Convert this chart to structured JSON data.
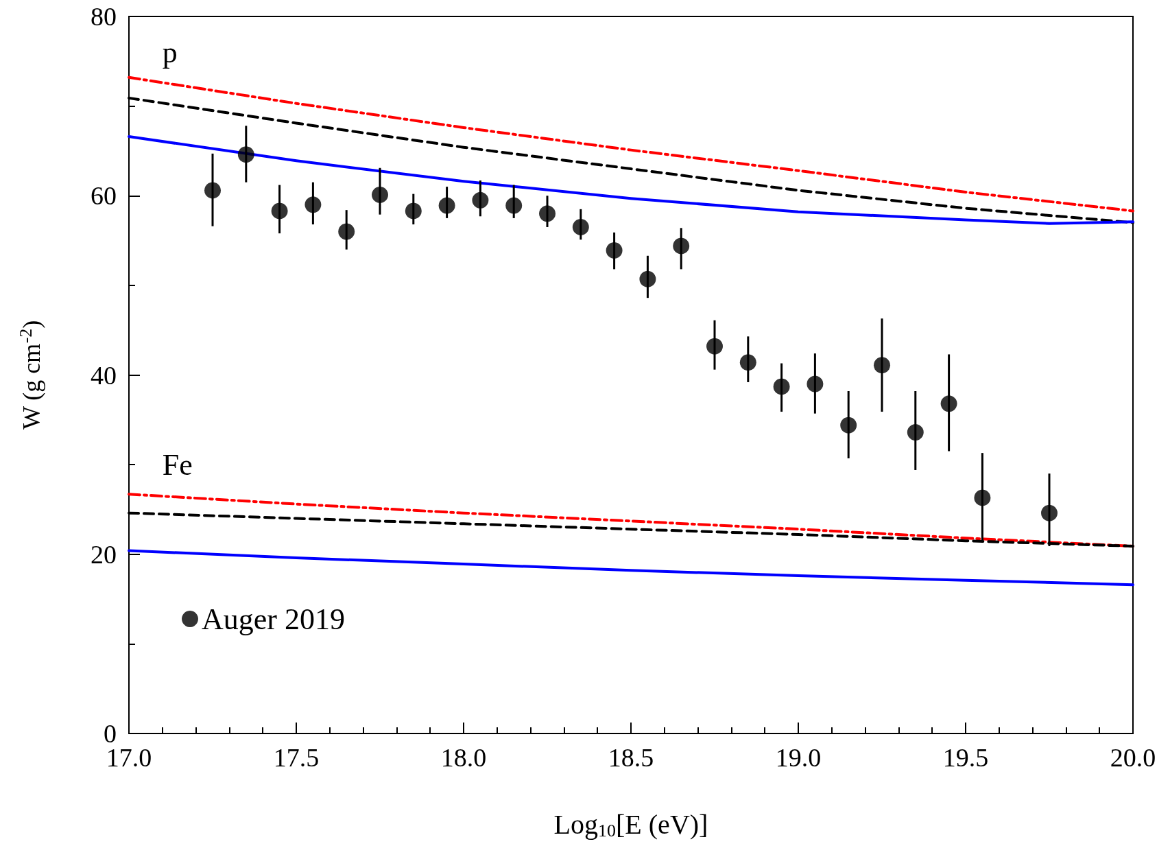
{
  "chart_data": {
    "type": "line",
    "xlabel": "Log$_{10}$[E (eV)]",
    "ylabel": "W (g cm$^{-2}$)",
    "xlim": [
      17,
      20
    ],
    "xticks": [
      {
        "value": 17,
        "label": "17.0"
      },
      {
        "value": 17.5,
        "label": "17.5"
      },
      {
        "value": 18,
        "label": "18.0"
      },
      {
        "value": 18.5,
        "label": "18.5"
      },
      {
        "value": 19,
        "label": "19.0"
      },
      {
        "value": 19.5,
        "label": "19.5"
      },
      {
        "value": 20,
        "label": "20.0"
      }
    ],
    "ylim": [
      0,
      80
    ],
    "yticks": [
      0,
      20,
      40,
      60,
      80
    ],
    "grid": false,
    "legend": "bottom left",
    "annotations": [
      "p",
      "Fe"
    ],
    "series": [
      {
        "color": "#ff0000",
        "line_style": "dashdot",
        "x": [
          17,
          17.5,
          18,
          18.5,
          19,
          19.5,
          20
        ],
        "values": [
          73.2,
          70.3,
          67.6,
          65.1,
          62.8,
          60.4,
          58.3
        ]
      },
      {
        "color": "#000000",
        "line_style": "dashed",
        "x": [
          17,
          17.5,
          18,
          18.5,
          19,
          19.5,
          20
        ],
        "values": [
          70.9,
          68.1,
          65.4,
          63.0,
          60.6,
          58.6,
          57.0
        ]
      },
      {
        "color": "#0000ff",
        "line_style": "solid",
        "x": [
          17,
          17.5,
          18,
          18.5,
          19,
          19.5,
          19.75,
          20
        ],
        "values": [
          66.6,
          63.9,
          61.6,
          59.7,
          58.2,
          57.3,
          56.9,
          57.1
        ]
      },
      {
        "color": "#ff0000",
        "line_style": "dashdot",
        "x": [
          17,
          17.5,
          18,
          18.5,
          19,
          19.5,
          20
        ],
        "values": [
          26.7,
          25.6,
          24.6,
          23.7,
          22.8,
          21.8,
          20.9
        ]
      },
      {
        "color": "#000000",
        "line_style": "dashed",
        "x": [
          17,
          17.5,
          18,
          18.5,
          19,
          19.5,
          20
        ],
        "values": [
          24.6,
          24.0,
          23.4,
          22.8,
          22.2,
          21.5,
          20.9
        ]
      },
      {
        "color": "#0000ff",
        "line_style": "solid",
        "x": [
          17,
          17.5,
          18,
          18.5,
          19,
          19.5,
          20
        ],
        "values": [
          20.4,
          19.6,
          18.9,
          18.2,
          17.6,
          17.1,
          16.6
        ]
      },
      {
        "type": "scatter",
        "name": "Auger 2019",
        "color": "#000000",
        "marker": "circle",
        "x": [
          17.25,
          17.35,
          17.45,
          17.55,
          17.65,
          17.75,
          17.85,
          17.95,
          18.05,
          18.15,
          18.25,
          18.35,
          18.45,
          18.55,
          18.65,
          18.75,
          18.85,
          18.95,
          19.05,
          19.15,
          19.25,
          19.35,
          19.45,
          19.55,
          19.75
        ],
        "values": [
          60.6,
          64.6,
          58.3,
          59.0,
          56.0,
          60.1,
          58.3,
          58.9,
          59.5,
          58.9,
          58.0,
          56.5,
          53.9,
          50.7,
          54.4,
          43.2,
          41.4,
          38.7,
          39.0,
          34.4,
          41.1,
          33.6,
          36.8,
          26.3,
          24.6
        ],
        "errors": [
          [
            56.6,
            64.7
          ],
          [
            61.5,
            67.8
          ],
          [
            55.8,
            61.2
          ],
          [
            56.8,
            61.5
          ],
          [
            54.0,
            58.4
          ],
          [
            57.9,
            63.1
          ],
          [
            56.8,
            60.2
          ],
          [
            57.5,
            61.0
          ],
          [
            57.7,
            61.7
          ],
          [
            57.5,
            61.2
          ],
          [
            56.5,
            60.0
          ],
          [
            55.1,
            58.5
          ],
          [
            51.8,
            55.9
          ],
          [
            48.6,
            53.3
          ],
          [
            51.8,
            56.4
          ],
          [
            40.6,
            46.1
          ],
          [
            39.2,
            44.3
          ],
          [
            35.9,
            41.3
          ],
          [
            35.7,
            42.4
          ],
          [
            30.7,
            38.2
          ],
          [
            35.9,
            46.3
          ],
          [
            29.4,
            38.2
          ],
          [
            31.5,
            42.3
          ],
          [
            21.3,
            31.3
          ],
          [
            20.9,
            29.0
          ]
        ]
      }
    ]
  }
}
